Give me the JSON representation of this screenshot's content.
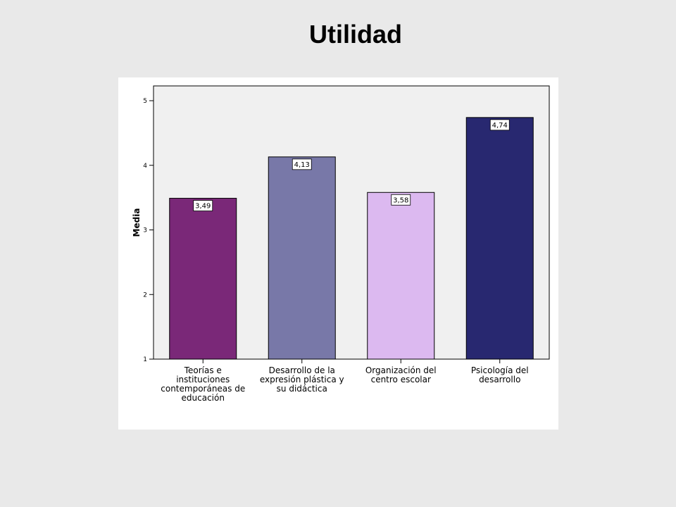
{
  "page": {
    "title": "Utilidad"
  },
  "chart_data": {
    "type": "bar",
    "title": "Utilidad",
    "xlabel": "",
    "ylabel": "Media",
    "ylim": [
      1,
      5
    ],
    "yticks": [
      1,
      2,
      3,
      4,
      5
    ],
    "grid": false,
    "categories": [
      [
        "Teorías e",
        "instituciones",
        "contemporáneas de",
        "educación"
      ],
      [
        "Desarrollo de la",
        "expresión plástica y",
        "su didáctica"
      ],
      [
        "Organización del",
        "centro escolar"
      ],
      [
        "Psicología del",
        "desarrollo"
      ]
    ],
    "values": [
      3.49,
      4.13,
      3.58,
      4.74
    ],
    "value_labels": [
      "3,49",
      "4,13",
      "3,58",
      "4,74"
    ],
    "colors": [
      "#7a2878",
      "#7878a8",
      "#dcb9f0",
      "#282870"
    ],
    "plot_background": "#f0f0f0"
  }
}
